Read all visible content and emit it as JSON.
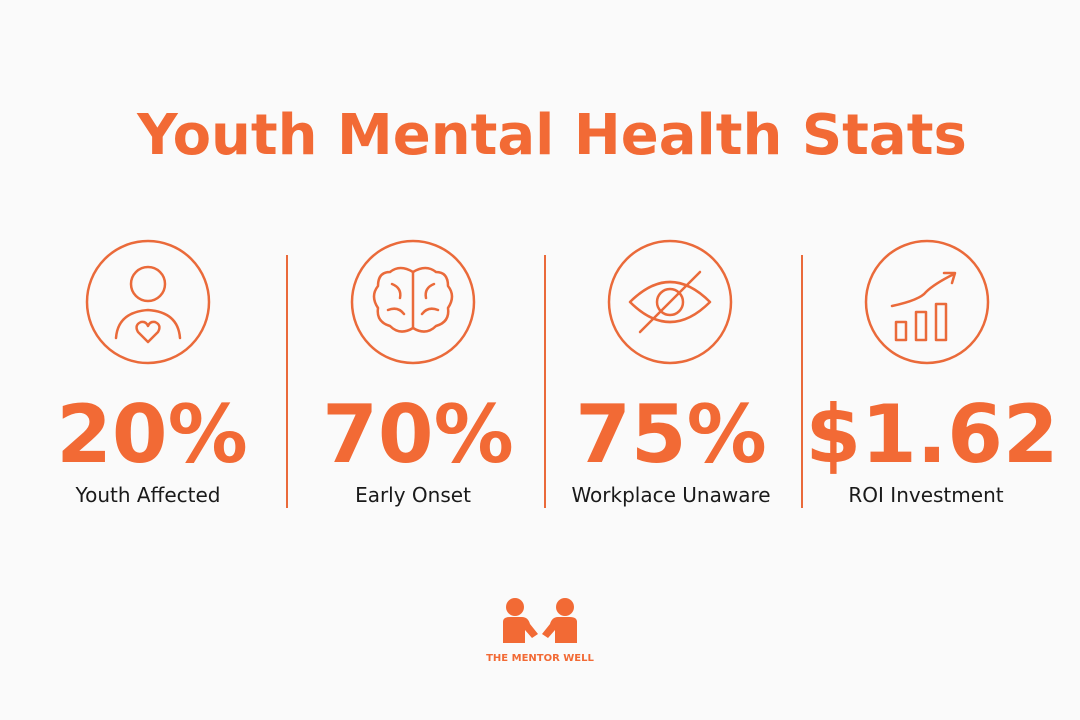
{
  "title": "Youth Mental Health Stats",
  "stats": [
    {
      "value": "20%",
      "label": "Youth Affected"
    },
    {
      "value": "70%",
      "label": "Early Onset"
    },
    {
      "value": "75%",
      "label": "Workplace Unaware"
    },
    {
      "value": "$1.62",
      "label": "ROI Investment"
    }
  ],
  "brand": "THE MENTOR WELL"
}
